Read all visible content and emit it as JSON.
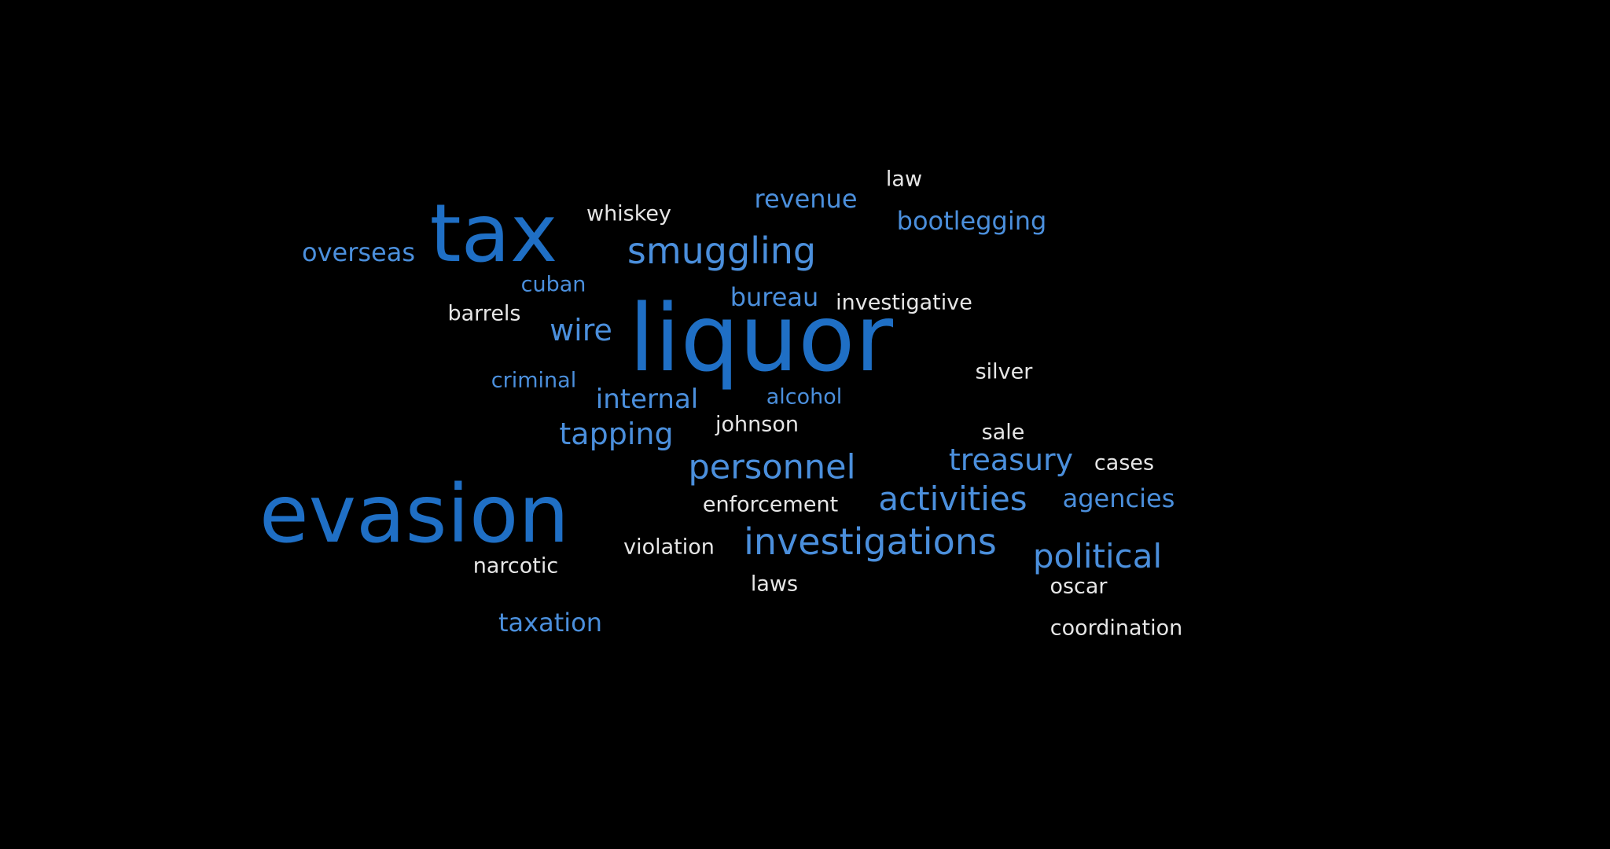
{
  "colors": {
    "background": "#000000",
    "primary": "#1f6fc5",
    "secondary": "#4b8fdc",
    "light": "#e6e6e6"
  },
  "words": [
    {
      "text": "liquor",
      "tone": "primary"
    },
    {
      "text": "evasion",
      "tone": "primary"
    },
    {
      "text": "tax",
      "tone": "primary"
    },
    {
      "text": "investigations",
      "tone": "secondary"
    },
    {
      "text": "smuggling",
      "tone": "secondary"
    },
    {
      "text": "personnel",
      "tone": "secondary"
    },
    {
      "text": "activities",
      "tone": "secondary"
    },
    {
      "text": "political",
      "tone": "secondary"
    },
    {
      "text": "treasury",
      "tone": "secondary"
    },
    {
      "text": "revenue",
      "tone": "secondary"
    },
    {
      "text": "bootlegging",
      "tone": "secondary"
    },
    {
      "text": "overseas",
      "tone": "secondary"
    },
    {
      "text": "agencies",
      "tone": "secondary"
    },
    {
      "text": "tapping",
      "tone": "secondary"
    },
    {
      "text": "internal",
      "tone": "secondary"
    },
    {
      "text": "wire",
      "tone": "secondary"
    },
    {
      "text": "bureau",
      "tone": "secondary"
    },
    {
      "text": "taxation",
      "tone": "secondary"
    },
    {
      "text": "cuban",
      "tone": "secondary"
    },
    {
      "text": "criminal",
      "tone": "secondary"
    },
    {
      "text": "alcohol",
      "tone": "secondary"
    },
    {
      "text": "law",
      "tone": "light"
    },
    {
      "text": "whiskey",
      "tone": "light"
    },
    {
      "text": "investigative",
      "tone": "light"
    },
    {
      "text": "barrels",
      "tone": "light"
    },
    {
      "text": "silver",
      "tone": "light"
    },
    {
      "text": "johnson",
      "tone": "light"
    },
    {
      "text": "sale",
      "tone": "light"
    },
    {
      "text": "cases",
      "tone": "light"
    },
    {
      "text": "enforcement",
      "tone": "light"
    },
    {
      "text": "violation",
      "tone": "light"
    },
    {
      "text": "narcotic",
      "tone": "light"
    },
    {
      "text": "laws",
      "tone": "light"
    },
    {
      "text": "oscar",
      "tone": "light"
    },
    {
      "text": "coordination",
      "tone": "light"
    }
  ]
}
